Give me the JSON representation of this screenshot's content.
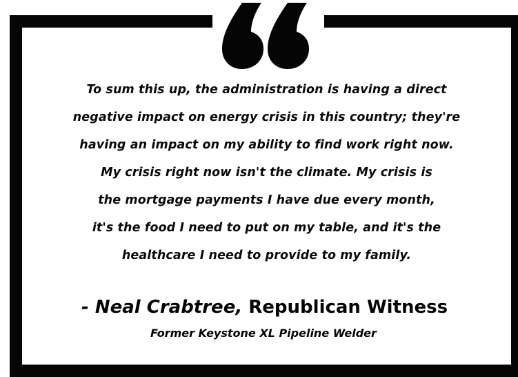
{
  "quote": {
    "lines": [
      "To sum this up, the administration is having a direct",
      "negative impact on energy crisis in this country; they're",
      "having an impact on my ability to find work right now.",
      "My crisis right now isn't the climate. My crisis is",
      "the mortgage payments I have due every month,",
      "it's the food I need to put on my table, and it's the",
      "healthcare I need to provide to my family."
    ]
  },
  "attribution": {
    "prefix": "- ",
    "name": "Neal Crabtree",
    "separator": ", ",
    "role": "Republican Witness",
    "subtitle": "Former Keystone XL Pipeline Welder"
  },
  "icons": {
    "quote_mark": "opening-quote-icon"
  },
  "colors": {
    "ink": "#050505",
    "background": "#ffffff"
  }
}
